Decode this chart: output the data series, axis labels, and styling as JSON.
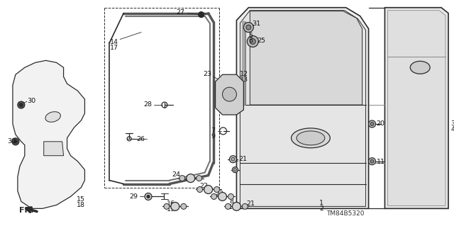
{
  "bg_color": "#ffffff",
  "part_number": "TM84B5320",
  "figsize": [
    6.4,
    3.19
  ],
  "dpi": 100,
  "line_color": "#2a2a2a",
  "gray_fill": "#c8c8c8",
  "light_fill": "#e8e8e8",
  "mid_fill": "#d0d0d0"
}
